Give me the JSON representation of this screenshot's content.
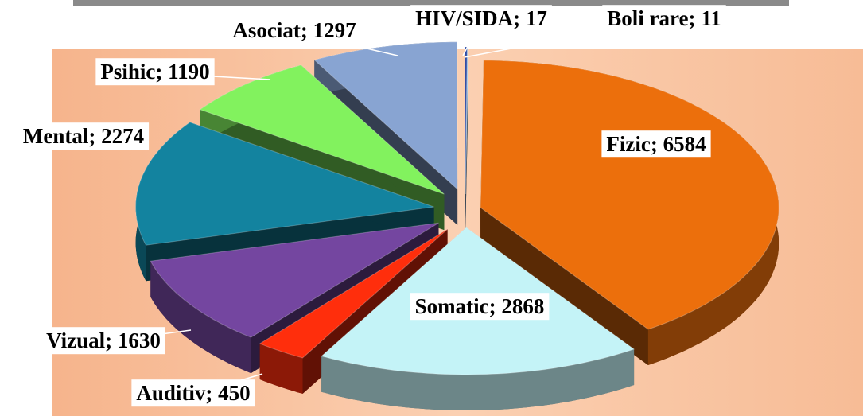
{
  "chart_data": {
    "type": "pie",
    "values": [
      6584,
      2868,
      450,
      1630,
      2274,
      1190,
      1297,
      17,
      11
    ],
    "value_labels": [
      "Fizic; 6584",
      "Somatic; 2868",
      "Auditiv; 450",
      "Vizual; 1630",
      "Mental; 2274",
      "Psihic; 1190",
      "Asociat; 1297",
      "HIV/SIDA; 17",
      "Boli rare; 11"
    ],
    "colors": [
      "#ec6f0c",
      "#c4f3f7",
      "#ff2e0c",
      "#7446a0",
      "#13839f",
      "#82f25e",
      "#88a4d2",
      "#1d3c9e",
      "#9cc2e4"
    ]
  }
}
